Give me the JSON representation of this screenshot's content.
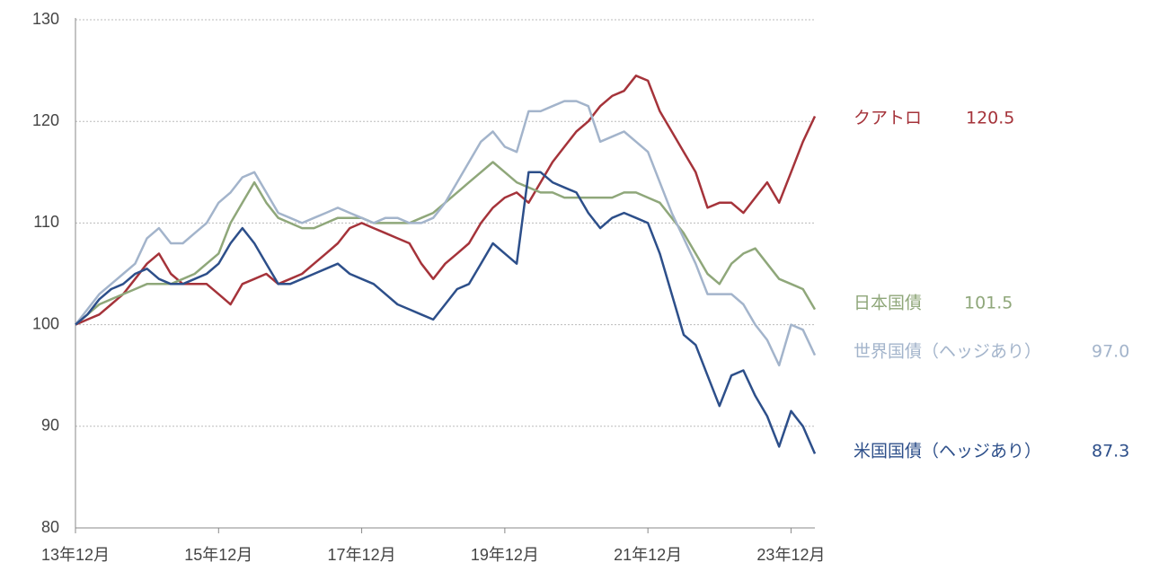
{
  "chart_data": {
    "type": "line",
    "x": [
      "13年12月",
      null,
      null,
      null,
      null,
      null,
      null,
      null,
      null,
      null,
      null,
      null,
      "15年12月",
      null,
      null,
      null,
      null,
      null,
      null,
      null,
      null,
      null,
      null,
      null,
      "17年12月",
      null,
      null,
      null,
      null,
      null,
      null,
      null,
      null,
      null,
      null,
      null,
      "19年12月",
      null,
      null,
      null,
      null,
      null,
      null,
      null,
      null,
      null,
      null,
      null,
      "21年12月",
      null,
      null,
      null,
      null,
      null,
      null,
      null,
      null,
      null,
      null,
      null,
      "23年12月",
      null,
      null
    ],
    "ylim": [
      80,
      130
    ],
    "yticks": [
      80,
      90,
      100,
      110,
      120,
      130
    ],
    "grid": true,
    "series": [
      {
        "name": "クアトロ",
        "color": "#a5333a",
        "values": [
          100,
          100.5,
          101,
          102,
          103,
          104.5,
          106,
          107,
          105,
          104,
          104,
          104,
          103,
          102,
          104,
          104.5,
          105,
          104,
          104.5,
          105,
          106,
          107,
          108,
          109.5,
          110,
          109.5,
          109,
          108.5,
          108,
          106,
          104.5,
          106,
          107,
          108,
          110,
          111.5,
          112.5,
          113,
          112,
          114,
          116,
          117.5,
          119,
          120,
          121.5,
          122.5,
          123,
          124.5,
          124,
          121,
          119,
          117,
          115,
          111.5,
          112,
          112,
          111,
          112.5,
          114,
          112,
          115,
          118,
          120.5
        ]
      },
      {
        "name": "日本国債",
        "color": "#8fa77a",
        "values": [
          100,
          101,
          102,
          102.5,
          103,
          103.5,
          104,
          104,
          104,
          104.5,
          105,
          106,
          107,
          110,
          112,
          114,
          112,
          110.5,
          110,
          109.5,
          109.5,
          110,
          110.5,
          110.5,
          110.5,
          110,
          110,
          110,
          110,
          110.5,
          111,
          112,
          113,
          114,
          115,
          116,
          115,
          114,
          113.5,
          113,
          113,
          112.5,
          112.5,
          112.5,
          112.5,
          112.5,
          113,
          113,
          112.5,
          112,
          110.5,
          109,
          107,
          105,
          104,
          106,
          107,
          107.5,
          106,
          104.5,
          104,
          103.5,
          101.5
        ]
      },
      {
        "name": "世界国債（ヘッジあり）",
        "color": "#a3b4cb",
        "values": [
          100,
          101.5,
          103,
          104,
          105,
          106,
          108.5,
          109.5,
          108,
          108,
          109,
          110,
          112,
          113,
          114.5,
          115,
          113,
          111,
          110.5,
          110,
          110.5,
          111,
          111.5,
          111,
          110.5,
          110,
          110.5,
          110.5,
          110,
          110,
          110.5,
          112,
          114,
          116,
          118,
          119,
          117.5,
          117,
          121,
          121,
          121.5,
          122,
          122,
          121.5,
          118,
          118.5,
          119,
          118,
          117,
          114,
          111,
          108.5,
          106,
          103,
          103,
          103,
          102,
          100,
          98.5,
          96,
          100,
          99.5,
          97
        ],
        "value_labels": [
          null,
          null,
          null,
          null,
          null,
          null,
          null,
          null,
          null,
          null,
          null,
          null,
          null,
          null,
          null,
          null,
          null,
          null,
          null,
          null,
          null,
          null,
          null,
          null,
          null,
          null,
          null,
          null,
          null,
          null,
          null,
          null,
          null,
          null,
          null,
          null,
          null,
          null,
          null,
          null,
          null,
          null,
          null,
          null,
          null,
          null,
          null,
          null,
          null,
          null,
          null,
          null,
          null,
          null,
          null,
          null,
          null,
          null,
          null,
          null,
          null,
          null,
          "97.0"
        ]
      },
      {
        "name": "米国国債（ヘッジあり）",
        "color": "#2d4f8a",
        "values": [
          100,
          101,
          102.5,
          103.5,
          104,
          105,
          105.5,
          104.5,
          104,
          104,
          104.5,
          105,
          106,
          108,
          109.5,
          108,
          106,
          104,
          104,
          104.5,
          105,
          105.5,
          106,
          105,
          104.5,
          104,
          103,
          102,
          101.5,
          101,
          100.5,
          102,
          103.5,
          104,
          106,
          108,
          107,
          106,
          115,
          115,
          114,
          113.5,
          113,
          111,
          109.5,
          110.5,
          111,
          110.5,
          110,
          107,
          103,
          99,
          98,
          95,
          92,
          95,
          95.5,
          93,
          91,
          88,
          91.5,
          90,
          87.3
        ]
      }
    ]
  }
}
